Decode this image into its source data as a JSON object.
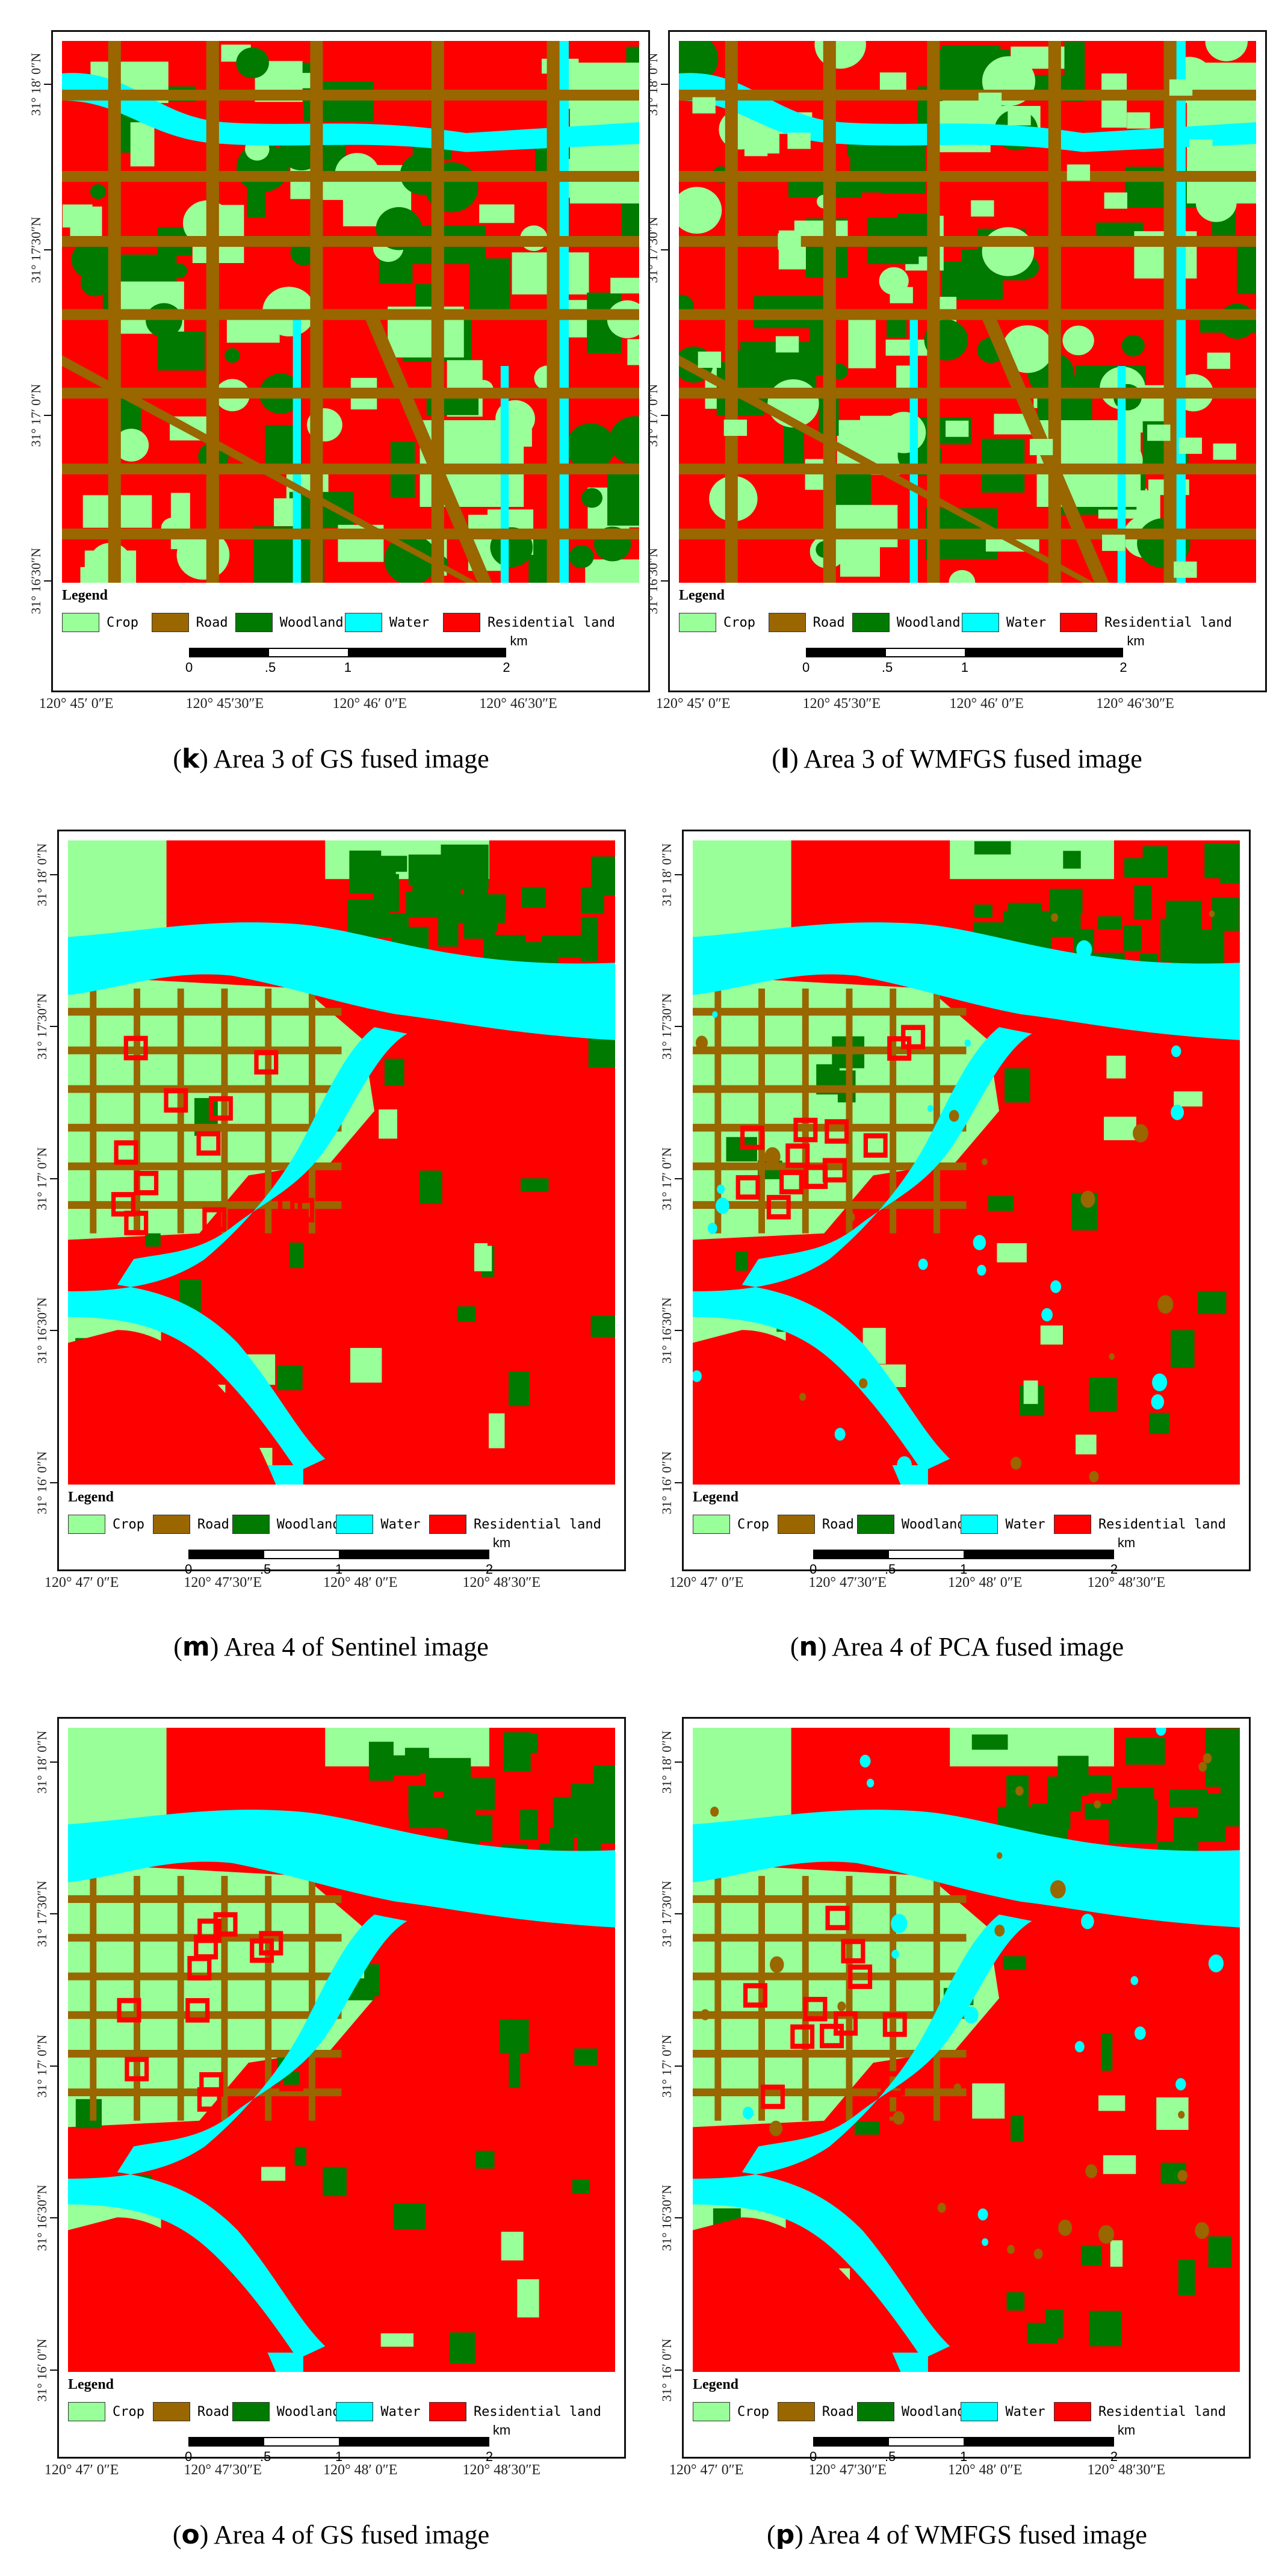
{
  "legend": {
    "title": "Legend",
    "items": [
      {
        "label": "Crop",
        "color": "#99ff99"
      },
      {
        "label": "Road",
        "color": "#996600"
      },
      {
        "label": "Woodland",
        "color": "#007a00"
      },
      {
        "label": "Water",
        "color": "#00ffff"
      },
      {
        "label": "Residential land",
        "color": "#ff0000"
      }
    ],
    "scale_ticks": [
      "0",
      ".5",
      "1",
      "2"
    ],
    "scale_unit": "km"
  },
  "panels": [
    {
      "letter": "k",
      "caption": "Area 3 of GS fused image",
      "lat_labels": [
        "31° 18′ 0″N",
        "31° 17′30″N",
        "31° 17′ 0″N",
        "31° 16′30″N"
      ],
      "lon_labels": [
        "120° 45′ 0″E",
        "120° 45′30″E",
        "120° 46′ 0″E",
        "120° 46′30″E"
      ]
    },
    {
      "letter": "l",
      "caption": "Area 3 of WMFGS fused image",
      "lat_labels": [
        "31° 18′ 0″N",
        "31° 17′30″N",
        "31° 17′ 0″N",
        "31° 16′30″N"
      ],
      "lon_labels": [
        "120° 45′ 0″E",
        "120° 45′30″E",
        "120° 46′ 0″E",
        "120° 46′30″E"
      ]
    },
    {
      "letter": "m",
      "caption": "Area 4 of Sentinel image",
      "lat_labels": [
        "31° 18′ 0″N",
        "31° 17′30″N",
        "31° 17′ 0″N",
        "31° 16′30″N",
        "31° 16′ 0″N"
      ],
      "lon_labels": [
        "120° 47′ 0″E",
        "120° 47′30″E",
        "120° 48′ 0″E",
        "120° 48′30″E"
      ]
    },
    {
      "letter": "n",
      "caption": "Area 4 of PCA fused image",
      "lat_labels": [
        "31° 18′ 0″N",
        "31° 17′30″N",
        "31° 17′ 0″N",
        "31° 16′30″N",
        "31° 16′ 0″N"
      ],
      "lon_labels": [
        "120° 47′ 0″E",
        "120° 47′30″E",
        "120° 48′ 0″E",
        "120° 48′30″E"
      ]
    },
    {
      "letter": "o",
      "caption": "Area 4 of GS fused image",
      "lat_labels": [
        "31° 18′ 0″N",
        "31° 17′30″N",
        "31° 17′ 0″N",
        "31° 16′30″N",
        "31° 16′ 0″N"
      ],
      "lon_labels": [
        "120° 47′ 0″E",
        "120° 47′30″E",
        "120° 48′ 0″E",
        "120° 48′30″E"
      ]
    },
    {
      "letter": "p",
      "caption": "Area 4 of WMFGS fused image",
      "lat_labels": [
        "31° 18′ 0″N",
        "31° 17′30″N",
        "31° 17′ 0″N",
        "31° 16′30″N",
        "31° 16′ 0″N"
      ],
      "lon_labels": [
        "120° 47′ 0″E",
        "120° 47′30″E",
        "120° 48′ 0″E",
        "120° 48′30″E"
      ]
    }
  ]
}
